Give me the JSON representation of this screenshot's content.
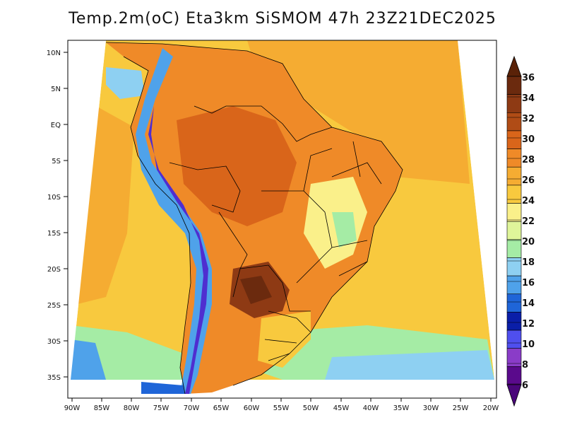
{
  "map": {
    "title": "Temp.2m(oC) Eta3km SiSMOM 47h 23Z21DEC2025",
    "variable": "Temp.2m",
    "units": "oC",
    "model": "Eta3km SiSMOM",
    "forecast_hour": "47h",
    "valid_time": "23Z21DEC2025",
    "lat_labels": [
      "10N",
      "5N",
      "EQ",
      "5S",
      "10S",
      "15S",
      "20S",
      "25S",
      "30S",
      "35S"
    ],
    "lon_labels": [
      "90W",
      "85W",
      "80W",
      "75W",
      "70W",
      "65W",
      "60W",
      "55W",
      "50W",
      "45W",
      "40W",
      "35W",
      "30W",
      "25W",
      "20W"
    ],
    "colorbar": {
      "labels": [
        "36",
        "34",
        "32",
        "30",
        "28",
        "26",
        "24",
        "22",
        "20",
        "18",
        "16",
        "14",
        "12",
        "10",
        "8",
        "6"
      ],
      "colors": [
        "#6b2a0e",
        "#8e3a14",
        "#b04c16",
        "#d9651a",
        "#ef8a28",
        "#f5ac32",
        "#f8c93e",
        "#faf08a",
        "#dff59a",
        "#a5eca5",
        "#8ed0f2",
        "#4fa2ea",
        "#1f65d8",
        "#0a1ea8",
        "#4f4fee",
        "#8a3cc8",
        "#5a0a8c"
      ],
      "low_triangle": "#4a067a",
      "high_triangle": "#5a2208"
    }
  }
}
